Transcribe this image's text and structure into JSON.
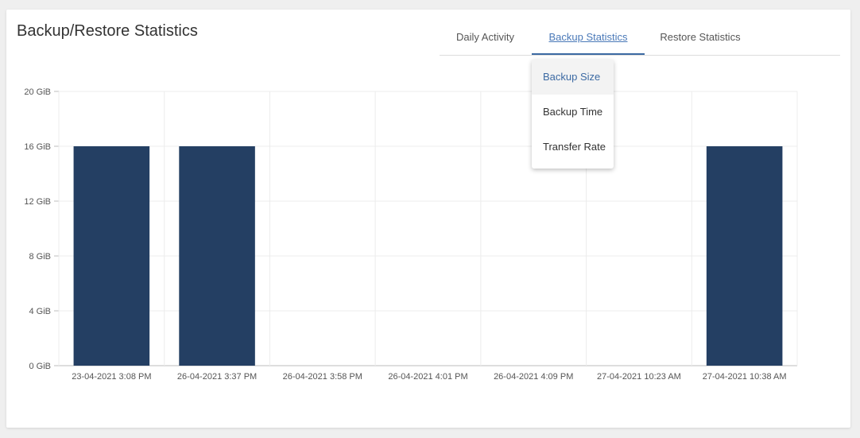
{
  "title": "Backup/Restore Statistics",
  "tabs": [
    {
      "label": "Daily Activity",
      "active": false
    },
    {
      "label": "Backup Statistics",
      "active": true
    },
    {
      "label": "Restore Statistics",
      "active": false
    }
  ],
  "dropdown": {
    "items": [
      {
        "label": "Backup Size",
        "selected": true
      },
      {
        "label": "Backup Time",
        "selected": false
      },
      {
        "label": "Transfer Rate",
        "selected": false
      }
    ]
  },
  "chart_data": {
    "type": "bar",
    "categories": [
      "23-04-2021 3:08 PM",
      "26-04-2021 3:37 PM",
      "26-04-2021 3:58 PM",
      "26-04-2021 4:01 PM",
      "26-04-2021 4:09 PM",
      "27-04-2021 10:23 AM",
      "27-04-2021 10:38 AM"
    ],
    "values": [
      16,
      16,
      0,
      0,
      0,
      0,
      16
    ],
    "unit": "GiB",
    "ylim": [
      0,
      20
    ],
    "yticks": [
      "0 GiB",
      "4 GiB",
      "8 GiB",
      "12 GiB",
      "16 GiB",
      "20 GiB"
    ],
    "grid": true,
    "bar_color": "#243f63"
  }
}
